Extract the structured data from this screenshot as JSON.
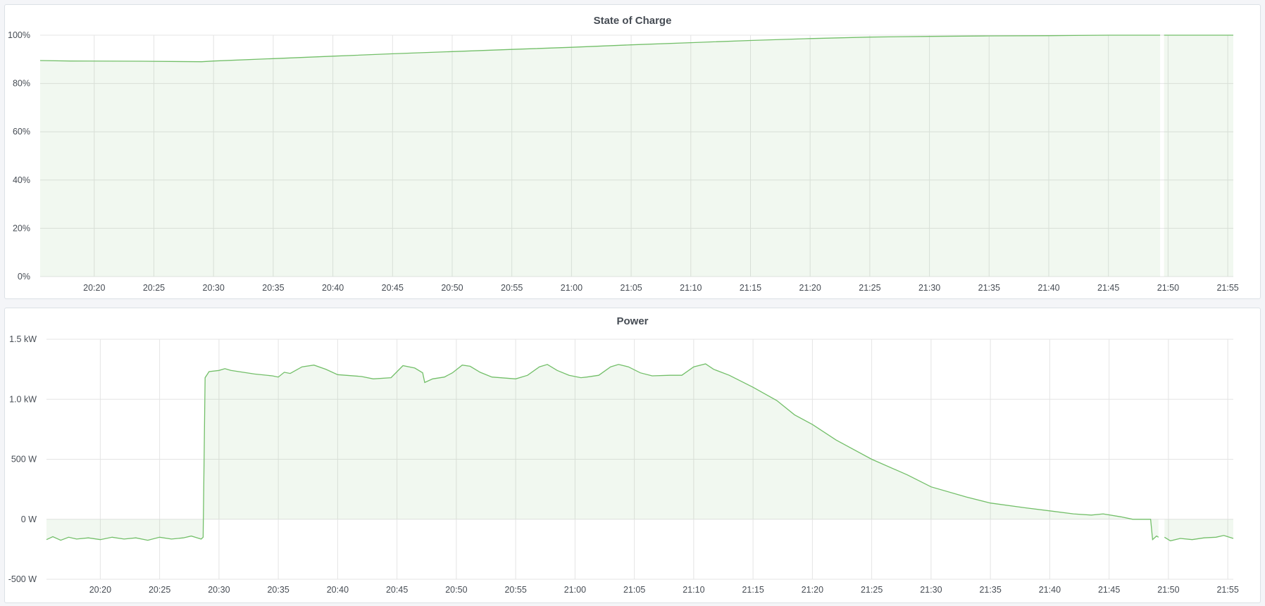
{
  "theme": {
    "line_color": "#73bf69",
    "fill_color": "#73bf69",
    "grid_color": "#e4e4e4",
    "background": "#f4f5f8"
  },
  "chart_data": [
    {
      "type": "area",
      "title": "State of Charge",
      "x_ticks": [
        "20:20",
        "20:25",
        "20:30",
        "20:35",
        "20:40",
        "20:45",
        "20:50",
        "20:55",
        "21:00",
        "21:05",
        "21:10",
        "21:15",
        "21:20",
        "21:25",
        "21:30",
        "21:35",
        "21:40",
        "21:45",
        "21:50",
        "21:55"
      ],
      "y_ticks": [
        {
          "v": 0,
          "label": "0%"
        },
        {
          "v": 20,
          "label": "20%"
        },
        {
          "v": 40,
          "label": "40%"
        },
        {
          "v": 60,
          "label": "60%"
        },
        {
          "v": 80,
          "label": "80%"
        },
        {
          "v": 100,
          "label": "100%"
        }
      ],
      "xlim": [
        "20:15:28",
        "21:55:28"
      ],
      "ylim": [
        0,
        100
      ],
      "unit": "%",
      "grid": true,
      "series": [
        {
          "segments": [
            [
              [
                "20:15:28",
                89.5
              ],
              [
                "20:18:00",
                89.3
              ],
              [
                "20:24:00",
                89.2
              ],
              [
                "20:29:00",
                89.0
              ],
              [
                "20:30:00",
                89.3
              ],
              [
                "20:35:00",
                90.3
              ],
              [
                "20:40:00",
                91.3
              ],
              [
                "20:45:00",
                92.3
              ],
              [
                "20:50:00",
                93.2
              ],
              [
                "20:55:00",
                94.1
              ],
              [
                "21:00:00",
                95.0
              ],
              [
                "21:05:00",
                96.0
              ],
              [
                "21:10:00",
                96.9
              ],
              [
                "21:15:00",
                97.8
              ],
              [
                "21:20:00",
                98.6
              ],
              [
                "21:25:00",
                99.2
              ],
              [
                "21:30:00",
                99.5
              ],
              [
                "21:35:00",
                99.7
              ],
              [
                "21:40:00",
                99.8
              ],
              [
                "21:45:00",
                100
              ],
              [
                "21:49:20",
                100
              ]
            ],
            [
              [
                "21:49:40",
                100
              ],
              [
                "21:52:00",
                100
              ],
              [
                "21:55:28",
                100
              ]
            ]
          ]
        }
      ]
    },
    {
      "type": "area",
      "title": "Power",
      "x_ticks": [
        "20:20",
        "20:25",
        "20:30",
        "20:35",
        "20:40",
        "20:45",
        "20:50",
        "20:55",
        "21:00",
        "21:05",
        "21:10",
        "21:15",
        "21:20",
        "21:25",
        "21:30",
        "21:35",
        "21:40",
        "21:45",
        "21:50",
        "21:55"
      ],
      "y_ticks": [
        {
          "v": -500,
          "label": "-500 W"
        },
        {
          "v": 0,
          "label": "0 W"
        },
        {
          "v": 500,
          "label": "500 W"
        },
        {
          "v": 1000,
          "label": "1.0 kW"
        },
        {
          "v": 1500,
          "label": "1.5 kW"
        }
      ],
      "xlim": [
        "20:15:28",
        "21:55:28"
      ],
      "ylim": [
        -500,
        1500
      ],
      "unit": "W",
      "grid": true,
      "series": [
        {
          "segments": [
            [
              [
                "20:15:28",
                -170
              ],
              [
                "20:16:00",
                -145
              ],
              [
                "20:16:40",
                -175
              ],
              [
                "20:17:20",
                -150
              ],
              [
                "20:18:00",
                -165
              ],
              [
                "20:19:00",
                -155
              ],
              [
                "20:20:00",
                -170
              ],
              [
                "20:21:00",
                -150
              ],
              [
                "20:22:00",
                -165
              ],
              [
                "20:23:00",
                -155
              ],
              [
                "20:24:00",
                -175
              ],
              [
                "20:25:00",
                -150
              ],
              [
                "20:26:00",
                -165
              ],
              [
                "20:27:00",
                -155
              ],
              [
                "20:27:40",
                -140
              ],
              [
                "20:28:30",
                -165
              ],
              [
                "20:28:40",
                -150
              ],
              [
                "20:28:50",
                1180
              ],
              [
                "20:29:10",
                1230
              ],
              [
                "20:30:00",
                1240
              ],
              [
                "20:30:30",
                1255
              ],
              [
                "20:31:00",
                1240
              ],
              [
                "20:33:00",
                1210
              ],
              [
                "20:34:30",
                1195
              ],
              [
                "20:35:00",
                1185
              ],
              [
                "20:35:30",
                1225
              ],
              [
                "20:36:00",
                1215
              ],
              [
                "20:37:00",
                1270
              ],
              [
                "20:38:00",
                1285
              ],
              [
                "20:39:00",
                1250
              ],
              [
                "20:40:00",
                1205
              ],
              [
                "20:42:00",
                1190
              ],
              [
                "20:43:00",
                1170
              ],
              [
                "20:44:30",
                1180
              ],
              [
                "20:45:30",
                1280
              ],
              [
                "20:46:30",
                1260
              ],
              [
                "20:47:10",
                1220
              ],
              [
                "20:47:20",
                1140
              ],
              [
                "20:48:00",
                1170
              ],
              [
                "20:49:00",
                1185
              ],
              [
                "20:49:40",
                1220
              ],
              [
                "20:50:30",
                1285
              ],
              [
                "20:51:10",
                1275
              ],
              [
                "20:52:00",
                1225
              ],
              [
                "20:53:00",
                1185
              ],
              [
                "20:55:00",
                1170
              ],
              [
                "20:56:00",
                1200
              ],
              [
                "20:57:00",
                1270
              ],
              [
                "20:57:40",
                1290
              ],
              [
                "20:58:30",
                1240
              ],
              [
                "20:59:30",
                1200
              ],
              [
                "21:00:30",
                1180
              ],
              [
                "21:01:00",
                1185
              ],
              [
                "21:02:00",
                1200
              ],
              [
                "21:03:00",
                1270
              ],
              [
                "21:03:40",
                1290
              ],
              [
                "21:04:30",
                1270
              ],
              [
                "21:05:30",
                1220
              ],
              [
                "21:06:30",
                1195
              ],
              [
                "21:08:00",
                1200
              ],
              [
                "21:09:00",
                1200
              ],
              [
                "21:10:00",
                1270
              ],
              [
                "21:11:00",
                1295
              ],
              [
                "21:11:40",
                1250
              ],
              [
                "21:13:00",
                1200
              ],
              [
                "21:15:00",
                1100
              ],
              [
                "21:17:00",
                990
              ],
              [
                "21:18:30",
                870
              ],
              [
                "21:20:00",
                790
              ],
              [
                "21:22:00",
                660
              ],
              [
                "21:25:00",
                500
              ],
              [
                "21:28:00",
                370
              ],
              [
                "21:30:00",
                270
              ],
              [
                "21:33:00",
                185
              ],
              [
                "21:35:00",
                135
              ],
              [
                "21:38:00",
                95
              ],
              [
                "21:40:00",
                70
              ],
              [
                "21:42:00",
                45
              ],
              [
                "21:43:30",
                35
              ],
              [
                "21:44:30",
                45
              ],
              [
                "21:46:00",
                20
              ],
              [
                "21:47:00",
                0
              ],
              [
                "21:48:30",
                0
              ],
              [
                "21:48:40",
                -170
              ],
              [
                "21:49:00",
                -140
              ],
              [
                "21:49:10",
                -150
              ]
            ],
            [
              [
                "21:49:40",
                -150
              ],
              [
                "21:50:10",
                -180
              ],
              [
                "21:51:00",
                -160
              ],
              [
                "21:52:00",
                -170
              ],
              [
                "21:53:00",
                -155
              ],
              [
                "21:54:00",
                -150
              ],
              [
                "21:54:40",
                -135
              ],
              [
                "21:55:28",
                -160
              ]
            ]
          ]
        }
      ]
    }
  ]
}
